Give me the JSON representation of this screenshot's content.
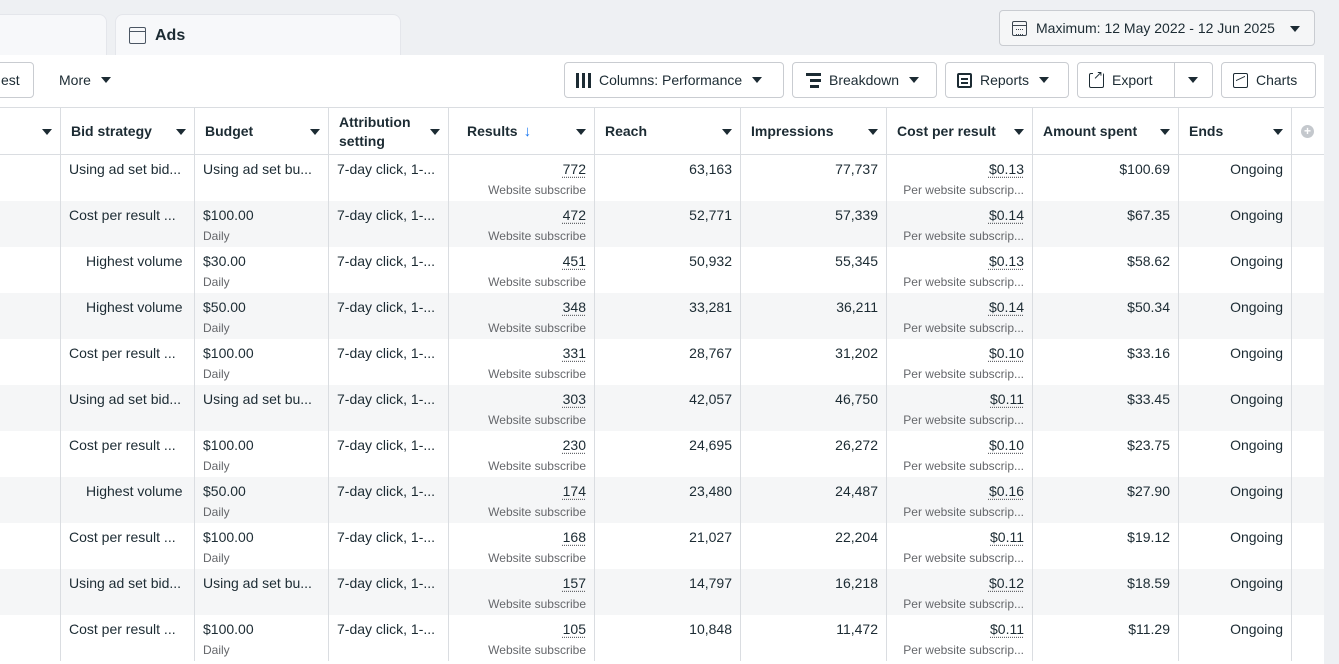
{
  "tabs": [
    {
      "label": ""
    },
    {
      "label": "Ads"
    }
  ],
  "date_range": "Maximum: 12 May 2022 - 12 Jun 2025",
  "toolbar": {
    "test_label": "est",
    "more_label": "More",
    "columns_label": "Columns: Performance",
    "breakdown_label": "Breakdown",
    "reports_label": "Reports",
    "export_label": "Export",
    "charts_label": "Charts"
  },
  "columns": {
    "bid_strategy": "Bid strategy",
    "budget": "Budget",
    "attribution_1": "Attribution",
    "attribution_2": "setting",
    "results": "Results",
    "reach": "Reach",
    "impressions": "Impressions",
    "cost_per_result": "Cost per result",
    "amount_spent": "Amount spent",
    "ends": "Ends"
  },
  "rows": [
    {
      "bid": "Using ad set bid...",
      "bid_indent": false,
      "budget": "Using ad set bu...",
      "budget_sub": "",
      "attr": "7-day click, 1-...",
      "results": "772",
      "results_sub": "Website subscribe",
      "reach": "63,163",
      "impressions": "77,737",
      "cpr": "$0.13",
      "cpr_sub": "Per website subscrip...",
      "spent": "$100.69",
      "ends": "Ongoing"
    },
    {
      "bid": "Cost per result ...",
      "bid_indent": false,
      "budget": "$100.00",
      "budget_sub": "Daily",
      "attr": "7-day click, 1-...",
      "results": "472",
      "results_sub": "Website subscribe",
      "reach": "52,771",
      "impressions": "57,339",
      "cpr": "$0.14",
      "cpr_sub": "Per website subscrip...",
      "spent": "$67.35",
      "ends": "Ongoing"
    },
    {
      "bid": "Highest volume",
      "bid_indent": true,
      "budget": "$30.00",
      "budget_sub": "Daily",
      "attr": "7-day click, 1-...",
      "results": "451",
      "results_sub": "Website subscribe",
      "reach": "50,932",
      "impressions": "55,345",
      "cpr": "$0.13",
      "cpr_sub": "Per website subscrip...",
      "spent": "$58.62",
      "ends": "Ongoing"
    },
    {
      "bid": "Highest volume",
      "bid_indent": true,
      "budget": "$50.00",
      "budget_sub": "Daily",
      "attr": "7-day click, 1-...",
      "results": "348",
      "results_sub": "Website subscribe",
      "reach": "33,281",
      "impressions": "36,211",
      "cpr": "$0.14",
      "cpr_sub": "Per website subscrip...",
      "spent": "$50.34",
      "ends": "Ongoing"
    },
    {
      "bid": "Cost per result ...",
      "bid_indent": false,
      "budget": "$100.00",
      "budget_sub": "Daily",
      "attr": "7-day click, 1-...",
      "results": "331",
      "results_sub": "Website subscribe",
      "reach": "28,767",
      "impressions": "31,202",
      "cpr": "$0.10",
      "cpr_sub": "Per website subscrip...",
      "spent": "$33.16",
      "ends": "Ongoing"
    },
    {
      "bid": "Using ad set bid...",
      "bid_indent": false,
      "budget": "Using ad set bu...",
      "budget_sub": "",
      "attr": "7-day click, 1-...",
      "results": "303",
      "results_sub": "Website subscribe",
      "reach": "42,057",
      "impressions": "46,750",
      "cpr": "$0.11",
      "cpr_sub": "Per website subscrip...",
      "spent": "$33.45",
      "ends": "Ongoing"
    },
    {
      "bid": "Cost per result ...",
      "bid_indent": false,
      "budget": "$100.00",
      "budget_sub": "Daily",
      "attr": "7-day click, 1-...",
      "results": "230",
      "results_sub": "Website subscribe",
      "reach": "24,695",
      "impressions": "26,272",
      "cpr": "$0.10",
      "cpr_sub": "Per website subscrip...",
      "spent": "$23.75",
      "ends": "Ongoing"
    },
    {
      "bid": "Highest volume",
      "bid_indent": true,
      "budget": "$50.00",
      "budget_sub": "Daily",
      "attr": "7-day click, 1-...",
      "results": "174",
      "results_sub": "Website subscribe",
      "reach": "23,480",
      "impressions": "24,487",
      "cpr": "$0.16",
      "cpr_sub": "Per website subscrip...",
      "spent": "$27.90",
      "ends": "Ongoing"
    },
    {
      "bid": "Cost per result ...",
      "bid_indent": false,
      "budget": "$100.00",
      "budget_sub": "Daily",
      "attr": "7-day click, 1-...",
      "results": "168",
      "results_sub": "Website subscribe",
      "reach": "21,027",
      "impressions": "22,204",
      "cpr": "$0.11",
      "cpr_sub": "Per website subscrip...",
      "spent": "$19.12",
      "ends": "Ongoing"
    },
    {
      "bid": "Using ad set bid...",
      "bid_indent": false,
      "budget": "Using ad set bu...",
      "budget_sub": "",
      "attr": "7-day click, 1-...",
      "results": "157",
      "results_sub": "Website subscribe",
      "reach": "14,797",
      "impressions": "16,218",
      "cpr": "$0.12",
      "cpr_sub": "Per website subscrip...",
      "spent": "$18.59",
      "ends": "Ongoing"
    },
    {
      "bid": "Cost per result ...",
      "bid_indent": false,
      "budget": "$100.00",
      "budget_sub": "Daily",
      "attr": "7-day click, 1-...",
      "results": "105",
      "results_sub": "Website subscribe",
      "reach": "10,848",
      "impressions": "11,472",
      "cpr": "$0.11",
      "cpr_sub": "Per website subscrip...",
      "spent": "$11.29",
      "ends": "Ongoing"
    }
  ]
}
